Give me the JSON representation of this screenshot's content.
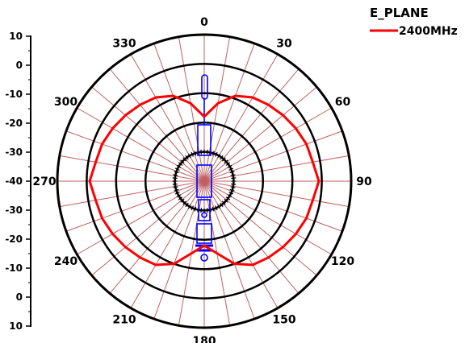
{
  "chart_data": {
    "type": "polar-line",
    "legend_title": "E_PLANE",
    "series": [
      {
        "name": "2400MHz",
        "color": "#ff0000",
        "theta_deg": [
          0,
          10,
          20,
          30,
          40,
          50,
          60,
          70,
          80,
          90,
          100,
          110,
          120,
          130,
          140,
          150,
          160,
          170,
          180,
          190,
          200,
          210,
          220,
          230,
          240,
          250,
          260,
          270,
          280,
          290,
          300,
          310,
          320,
          330,
          340,
          350
        ],
        "r_db": [
          -18,
          -13,
          -9,
          -7,
          -6,
          -5,
          -4,
          -3,
          -2.5,
          -1,
          -2.5,
          -3,
          -4,
          -5,
          -6,
          -7,
          -10,
          -15,
          -18,
          -15,
          -10,
          -7,
          -6,
          -5,
          -4,
          -3,
          -2.5,
          -1,
          -2.5,
          -3,
          -4,
          -5,
          -6,
          -7,
          -9,
          -13
        ]
      }
    ],
    "radial_range_db": [
      -40,
      10
    ],
    "radial_ticks": [
      "10",
      "0",
      "-10",
      "-20",
      "-30",
      "-40",
      "-30",
      "-20",
      "-10",
      "0",
      "10"
    ],
    "angle_labels": [
      {
        "deg": 0,
        "label": "0"
      },
      {
        "deg": 30,
        "label": "30"
      },
      {
        "deg": 60,
        "label": "60"
      },
      {
        "deg": 90,
        "label": "90"
      },
      {
        "deg": 120,
        "label": "120"
      },
      {
        "deg": 150,
        "label": "150"
      },
      {
        "deg": 180,
        "label": "180"
      },
      {
        "deg": 210,
        "label": "210"
      },
      {
        "deg": 240,
        "label": "240"
      },
      {
        "deg": 270,
        "label": "270"
      },
      {
        "deg": 300,
        "label": "300"
      },
      {
        "deg": 330,
        "label": "330"
      }
    ],
    "grid": true,
    "legend_position": "top-right",
    "colors": {
      "spokes": "#c06060",
      "rings": "#000000",
      "antenna": "#0000ff"
    }
  }
}
